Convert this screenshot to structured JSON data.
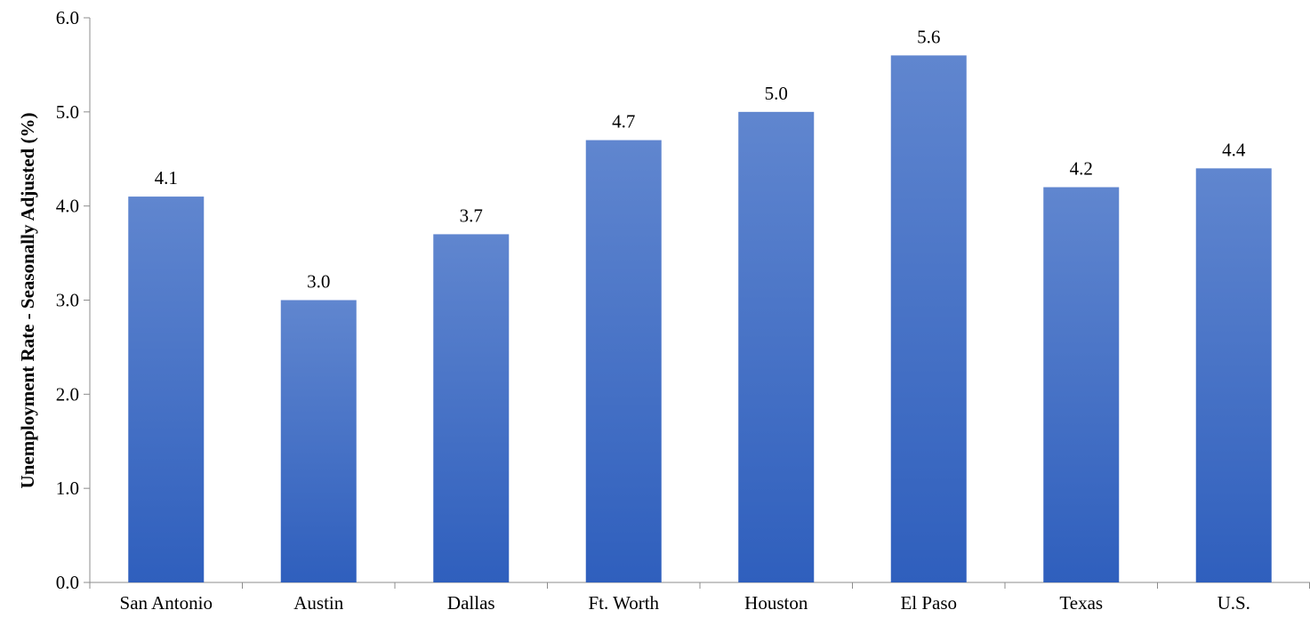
{
  "chart_data": {
    "type": "bar",
    "title": "",
    "xlabel": "",
    "ylabel": "Unemployment Rate - Seasonally Adjusted (%)",
    "categories": [
      "San Antonio",
      "Austin",
      "Dallas",
      "Ft. Worth",
      "Houston",
      "El Paso",
      "Texas",
      "U.S."
    ],
    "values": [
      4.1,
      3.0,
      3.7,
      4.7,
      5.0,
      5.6,
      4.2,
      4.4
    ],
    "data_labels": [
      "4.1",
      "3.0",
      "3.7",
      "4.7",
      "5.0",
      "5.6",
      "4.2",
      "4.4"
    ],
    "ylim": [
      0,
      6
    ],
    "y_ticks": [
      0,
      1,
      2,
      3,
      4,
      5,
      6
    ],
    "y_tick_labels": [
      "0.0",
      "1.0",
      "2.0",
      "3.0",
      "4.0",
      "5.0",
      "6.0"
    ],
    "grid": false,
    "legend": "none",
    "colors": {
      "bar_top": "#6086cf",
      "bar_bottom": "#2f5fbd",
      "axis": "#8c8c8c",
      "text": "#000000"
    }
  }
}
